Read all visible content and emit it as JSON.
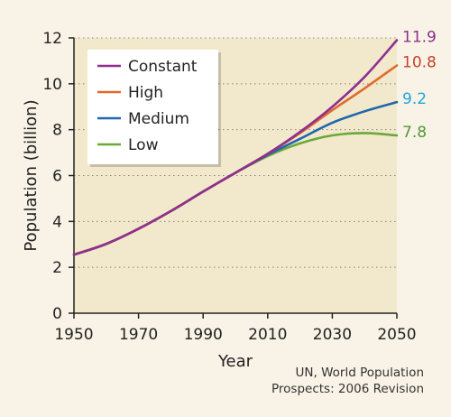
{
  "chart_data": {
    "type": "line",
    "xlabel": "Year",
    "ylabel": "Population (billion)",
    "xlim": [
      1950,
      2050
    ],
    "ylim": [
      0,
      12
    ],
    "xticks": [
      1950,
      1970,
      1990,
      2010,
      2030,
      2050
    ],
    "yticks": [
      0,
      2,
      4,
      6,
      8,
      10,
      12
    ],
    "grid": "horizontal-dotted",
    "legend_position": "top-left",
    "background": "#f2e8cc",
    "series": [
      {
        "name": "Constant",
        "color": "#8e2f8f",
        "end_label": "11.9",
        "x": [
          1950,
          1960,
          1970,
          1980,
          1990,
          2000,
          2010,
          2020,
          2030,
          2040,
          2050
        ],
        "y": [
          2.55,
          3.02,
          3.68,
          4.45,
          5.3,
          6.12,
          6.95,
          7.9,
          9.0,
          10.3,
          11.9
        ]
      },
      {
        "name": "High",
        "color": "#e06a2c",
        "end_label": "10.8",
        "x": [
          1950,
          1960,
          1970,
          1980,
          1990,
          2000,
          2010,
          2020,
          2030,
          2040,
          2050
        ],
        "y": [
          2.55,
          3.02,
          3.68,
          4.45,
          5.3,
          6.12,
          6.95,
          7.85,
          8.85,
          9.8,
          10.8
        ]
      },
      {
        "name": "Medium",
        "color": "#1f66b0",
        "end_label": "9.2",
        "x": [
          1950,
          1960,
          1970,
          1980,
          1990,
          2000,
          2010,
          2020,
          2030,
          2040,
          2050
        ],
        "y": [
          2.55,
          3.02,
          3.68,
          4.45,
          5.3,
          6.12,
          6.9,
          7.6,
          8.3,
          8.8,
          9.2
        ]
      },
      {
        "name": "Low",
        "color": "#6aa83a",
        "end_label": "7.8",
        "x": [
          1950,
          1960,
          1970,
          1980,
          1990,
          2000,
          2010,
          2020,
          2030,
          2040,
          2050
        ],
        "y": [
          2.55,
          3.02,
          3.68,
          4.45,
          5.3,
          6.12,
          6.85,
          7.4,
          7.75,
          7.85,
          7.75
        ]
      }
    ],
    "end_label_colors": {
      "Constant": "#8e2f8f",
      "High": "#c4432b",
      "Medium": "#1fa5df",
      "Low": "#4f9a35"
    }
  },
  "source": {
    "line1": "UN, World Population",
    "line2": "Prospects: 2006 Revision"
  }
}
